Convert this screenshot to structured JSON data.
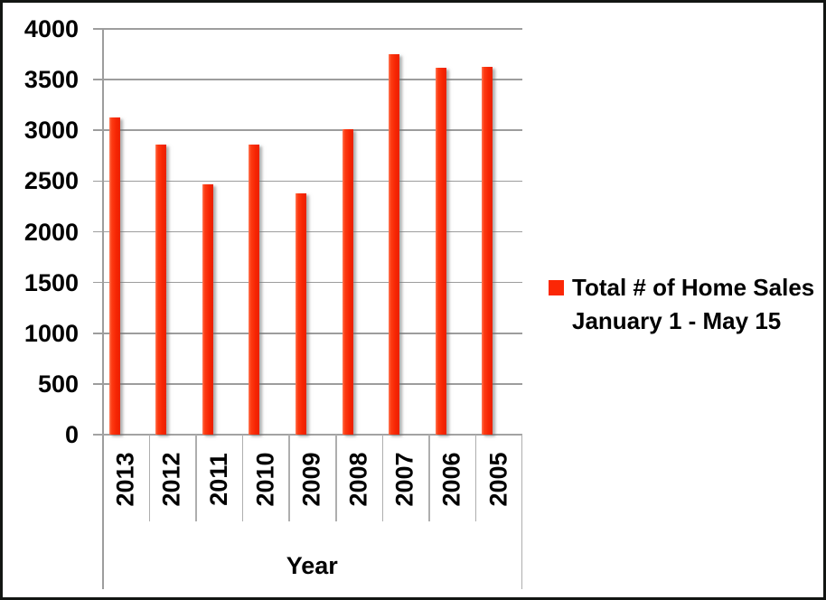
{
  "window": {
    "background_color": "#ffffff",
    "border_color": "#121512"
  },
  "chart_data": {
    "type": "bar",
    "title": "",
    "categories": [
      "2013",
      "2012",
      "2011",
      "2010",
      "2009",
      "2008",
      "2007",
      "2006",
      "2005"
    ],
    "values": [
      3130,
      2860,
      2470,
      2860,
      2380,
      3010,
      3750,
      3620,
      3630
    ],
    "series": [
      {
        "name": "Total # of Home Sales January 1 - May 15",
        "values": [
          3130,
          2860,
          2470,
          2860,
          2380,
          3010,
          3750,
          3620,
          3630
        ]
      }
    ],
    "xlabel": "Year",
    "ylabel": "",
    "ylim": [
      0,
      4000
    ],
    "ytick_step": 500,
    "ytick_labels": [
      "0",
      "500",
      "1000",
      "1500",
      "2000",
      "2500",
      "3000",
      "3500",
      "4000"
    ],
    "grid": true,
    "gridline_color": "#9d9d9d",
    "bar_color": "#fb2706",
    "legend_position": "right",
    "legend": {
      "line1": "Total # of Home Sales",
      "line2": "January 1 - May 15",
      "marker_color": "#fb2706"
    }
  }
}
